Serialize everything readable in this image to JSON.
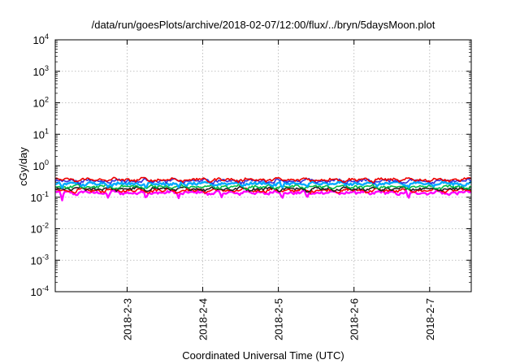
{
  "chart_data": {
    "type": "line",
    "title": "/data/run/goesPlots/archive/2018-02-07/12:00/flux/../bryn/5daysMoon.plot",
    "xlabel": "Coordinated Universal Time (UTC)",
    "ylabel": "cGy/day",
    "yscale": "log",
    "ylim": [
      0.0001,
      10000
    ],
    "y_ticks": [
      {
        "exp": -4,
        "base": "10",
        "sup": "-4"
      },
      {
        "exp": -3,
        "base": "10",
        "sup": "-3"
      },
      {
        "exp": -2,
        "base": "10",
        "sup": "-2"
      },
      {
        "exp": -1,
        "base": "10",
        "sup": "-1"
      },
      {
        "exp": 0,
        "base": "10",
        "sup": "0"
      },
      {
        "exp": 1,
        "base": "10",
        "sup": "1"
      },
      {
        "exp": 2,
        "base": "10",
        "sup": "2"
      },
      {
        "exp": 3,
        "base": "10",
        "sup": "3"
      },
      {
        "exp": 4,
        "base": "10",
        "sup": "4"
      }
    ],
    "x_range_days": [
      2.05,
      7.55
    ],
    "x_ticks": [
      {
        "label": "2018-2-3",
        "day": 3
      },
      {
        "label": "2018-2-4",
        "day": 4
      },
      {
        "label": "2018-2-5",
        "day": 5
      },
      {
        "label": "2018-2-6",
        "day": 6
      },
      {
        "label": "2018-2-7",
        "day": 7
      }
    ],
    "grid": true,
    "legend": "none",
    "series": [
      {
        "color": "#ff00ff",
        "base": 0.14,
        "dips": [
          [
            2.14,
            0.075
          ],
          [
            2.75,
            0.09
          ],
          [
            3.25,
            0.08
          ],
          [
            3.68,
            0.09
          ],
          [
            4.25,
            0.1
          ],
          [
            5.05,
            0.08
          ],
          [
            5.38,
            0.09
          ],
          [
            6.72,
            0.085
          ],
          [
            7.25,
            0.11
          ]
        ]
      },
      {
        "color": "#ff0000",
        "base": 0.165,
        "dips": []
      },
      {
        "color": "#222222",
        "base": 0.185,
        "dips": []
      },
      {
        "color": "#00bb44",
        "base": 0.215,
        "dips": []
      },
      {
        "color": "#00aaff",
        "base": 0.27,
        "dips": [
          [
            2.14,
            0.19
          ],
          [
            2.75,
            0.2
          ],
          [
            3.25,
            0.18
          ],
          [
            3.68,
            0.2
          ],
          [
            5.05,
            0.18
          ],
          [
            5.38,
            0.2
          ],
          [
            6.72,
            0.19
          ]
        ]
      },
      {
        "color": "#3333dd",
        "base": 0.33,
        "dips": []
      },
      {
        "color": "#ee0000",
        "base": 0.36,
        "dips": []
      }
    ]
  }
}
